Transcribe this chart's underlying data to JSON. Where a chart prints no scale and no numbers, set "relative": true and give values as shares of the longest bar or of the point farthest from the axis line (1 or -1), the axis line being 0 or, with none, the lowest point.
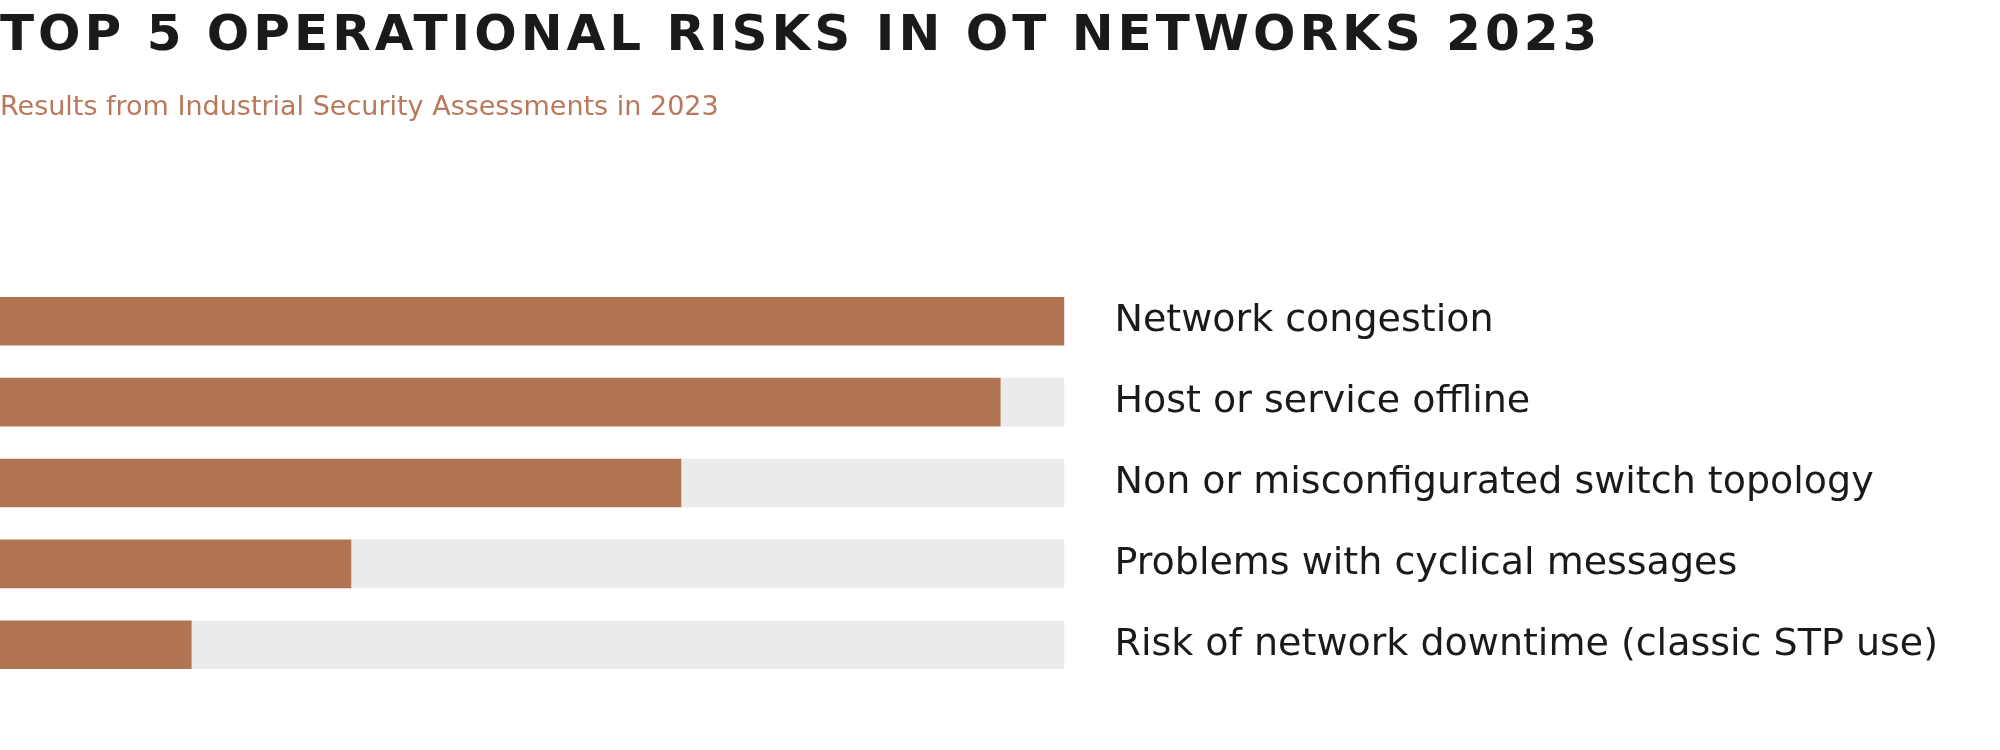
{
  "chart_data": {
    "type": "bar",
    "title": "TOP 5 OPERATIONAL RISKS IN OT NETWORKS 2023",
    "subtitle": "Results from Industrial Security Assessments in 2023",
    "orientation": "horizontal",
    "stacked": true,
    "relative": true,
    "categories": [
      "Network congestion",
      "Host or service offline",
      "Non or misconfigurated switch topology",
      "Problems with cyclical messages",
      "Risk of network downtime (classic STP use)"
    ],
    "series": [
      {
        "color": "#b07452",
        "values": [
          1,
          0.94,
          0.64,
          0.33,
          0.18
        ]
      },
      {
        "color": "#ebebeb",
        "values": [
          0,
          0.06,
          0.36,
          0.67,
          0.82
        ]
      }
    ]
  }
}
